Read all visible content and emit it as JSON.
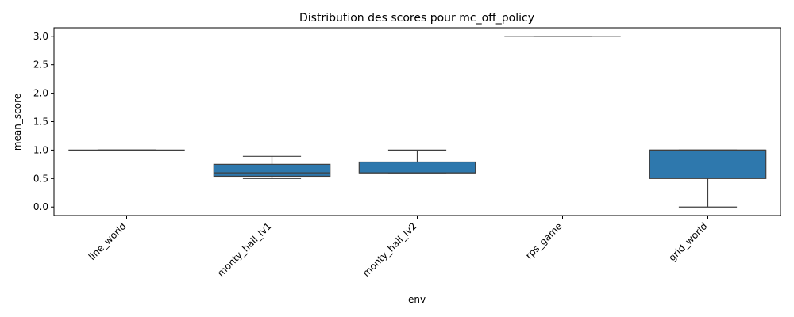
{
  "chart_data": {
    "type": "box",
    "title": "Distribution des scores pour mc_off_policy",
    "xlabel": "env",
    "ylabel": "mean_score",
    "categories": [
      "line_world",
      "monty_hall_lv1",
      "monty_hall_lv2",
      "rps_game",
      "grid_world"
    ],
    "boxes": [
      {
        "category": "line_world",
        "whisker_low": 1.0,
        "q1": 1.0,
        "median": 1.0,
        "q3": 1.0,
        "whisker_high": 1.0
      },
      {
        "category": "monty_hall_lv1",
        "whisker_low": 0.5,
        "q1": 0.54,
        "median": 0.6,
        "q3": 0.75,
        "whisker_high": 0.89
      },
      {
        "category": "monty_hall_lv2",
        "whisker_low": 0.6,
        "q1": 0.6,
        "median": 0.6,
        "q3": 0.79,
        "whisker_high": 1.0
      },
      {
        "category": "rps_game",
        "whisker_low": 3.0,
        "q1": 3.0,
        "median": 3.0,
        "q3": 3.0,
        "whisker_high": 3.0
      },
      {
        "category": "grid_world",
        "whisker_low": 0.0,
        "q1": 0.5,
        "median": 1.0,
        "q3": 1.0,
        "whisker_high": 1.0
      }
    ],
    "yticks": [
      "0.0",
      "0.5",
      "1.0",
      "1.5",
      "2.0",
      "2.5",
      "3.0"
    ],
    "ylim": [
      -0.15,
      3.15
    ],
    "grid": false,
    "colors": {
      "box_fill": "#2e78ad",
      "line": "#3f3f3f"
    }
  }
}
